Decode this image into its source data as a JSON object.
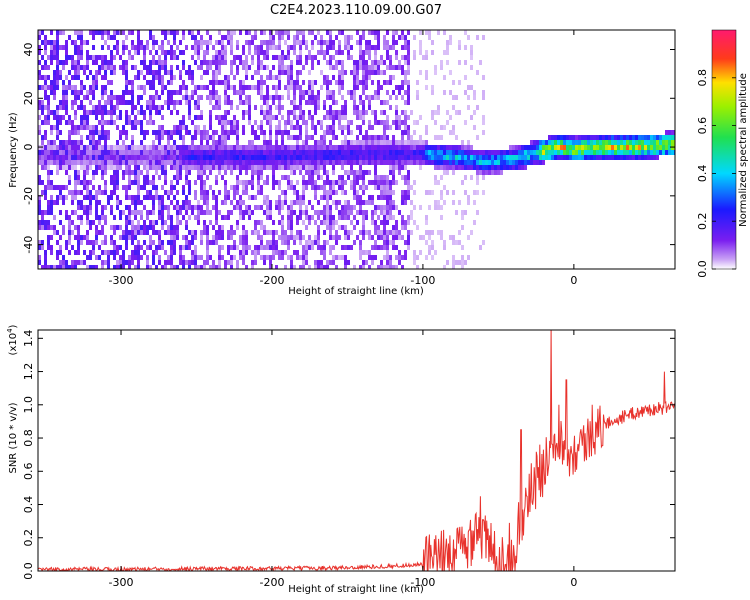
{
  "figure": {
    "title": "C2E4.2023.110.09.00.G07"
  },
  "chart_data": [
    {
      "type": "heatmap",
      "xlabel": "Height of straight line (km)",
      "ylabel": "Frequency (Hz)",
      "xlim": [
        -355,
        67
      ],
      "ylim": [
        -50,
        48
      ],
      "xticks": [
        -300,
        -200,
        -100,
        0
      ],
      "yticks": [
        -40,
        -20,
        0,
        20,
        40
      ],
      "colorbar": {
        "label": "Normalized spectral amplitude",
        "range": [
          0.0,
          1.0
        ],
        "ticks": [
          0.0,
          0.2,
          0.4,
          0.6,
          0.8
        ],
        "tick_labels": [
          "0.0",
          "0.2",
          "0.4",
          "0.6",
          "0.8"
        ],
        "colormap": "rainbow (white-violet-blue-cyan-green-yellow-red-magenta)"
      },
      "dominant_signal_trace": {
        "x": [
          -260,
          -200,
          -150,
          -100,
          -80,
          -60,
          -40,
          -25,
          -10,
          0,
          20,
          40,
          60,
          67
        ],
        "y": [
          -3,
          -3,
          -2,
          -2,
          -3,
          -5,
          -4,
          -1,
          1,
          0,
          1,
          1,
          2,
          2
        ]
      }
    },
    {
      "type": "line",
      "xlabel": "Height of straight line (km)",
      "ylabel": "SNR (10 * v/v)",
      "y_multiplier": "(x10",
      "y_multiplier_exp": "4",
      "y_multiplier_close": ")",
      "xlim": [
        -355,
        67
      ],
      "ylim": [
        0.0,
        1.45
      ],
      "xticks": [
        -300,
        -200,
        -100,
        0
      ],
      "yticks": [
        0.0,
        0.2,
        0.4,
        0.6,
        0.8,
        1.0,
        1.2,
        1.4
      ],
      "ytick_labels": [
        "0.0",
        "0.2",
        "0.4",
        "0.6",
        "0.8",
        "1.0",
        "1.2",
        "1.4"
      ],
      "series": [
        {
          "color": "#e8322c",
          "x": [
            -355,
            -300,
            -250,
            -200,
            -150,
            -120,
            -100,
            -90,
            -80,
            -70,
            -65,
            -60,
            -55,
            -50,
            -45,
            -40,
            -35,
            -30,
            -25,
            -20,
            -15,
            -10,
            -5,
            0,
            5,
            10,
            15,
            20,
            30,
            40,
            50,
            60,
            67
          ],
          "y": [
            0.01,
            0.01,
            0.015,
            0.015,
            0.02,
            0.03,
            0.04,
            0.06,
            0.1,
            0.15,
            0.3,
            0.2,
            0.12,
            0.06,
            0.08,
            0.15,
            0.28,
            0.45,
            0.55,
            0.62,
            0.78,
            0.82,
            0.7,
            0.72,
            0.76,
            0.8,
            0.84,
            0.88,
            0.92,
            0.95,
            0.97,
            0.98,
            0.98
          ]
        }
      ],
      "spikes": [
        {
          "x": -15,
          "y": 1.47
        },
        {
          "x": -10,
          "y": 1.0
        },
        {
          "x": -5,
          "y": 1.15
        },
        {
          "x": 12,
          "y": 1.0
        },
        {
          "x": 60,
          "y": 1.2
        },
        {
          "x": -35,
          "y": 0.85
        },
        {
          "x": -62,
          "y": 0.45
        }
      ]
    }
  ]
}
